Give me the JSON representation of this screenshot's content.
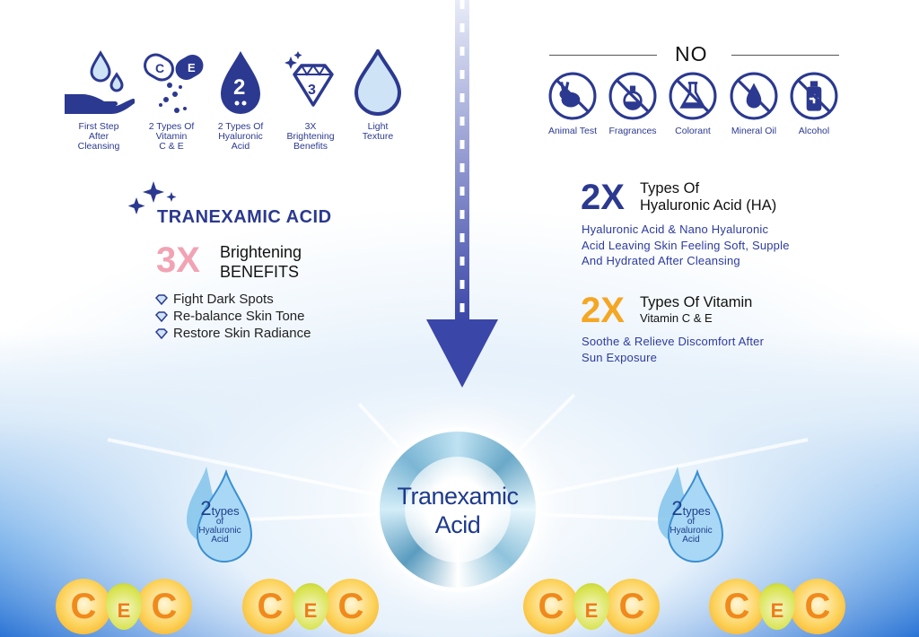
{
  "features": [
    {
      "icon": "hand-water-drops-icon",
      "label": "First Step\nAfter\nCleansing"
    },
    {
      "icon": "vitamin-capsule-icon",
      "label": "2 Types Of\nVitamin\nC & E",
      "capsule_letters": [
        "C",
        "E"
      ]
    },
    {
      "icon": "hyaluronic-drop-icon",
      "label": "2 Types Of\nHyaluronic\nAcid",
      "badge": "2"
    },
    {
      "icon": "diamond-icon",
      "label": "3X\nBrightening\nBenefits",
      "badge": "3"
    },
    {
      "icon": "light-drop-icon",
      "label": "Light\nTexture"
    }
  ],
  "no_section": {
    "title": "NO",
    "items": [
      {
        "icon": "no-animal-test-icon",
        "label": "Animal Test"
      },
      {
        "icon": "no-fragrance-icon",
        "label": "Fragrances"
      },
      {
        "icon": "no-colorant-icon",
        "label": "Colorant"
      },
      {
        "icon": "no-mineral-oil-icon",
        "label": "Mineral Oil"
      },
      {
        "icon": "no-alcohol-icon",
        "label": "Alcohol"
      }
    ]
  },
  "tranexamic": {
    "title": "TRANEXAMIC ACID",
    "multiplier": "3X",
    "heading_line1": "Brightening",
    "heading_line2": "BENEFITS",
    "bullets": [
      "Fight Dark Spots",
      "Re-balance Skin Tone",
      "Restore Skin Radiance"
    ]
  },
  "hyaluronic": {
    "multiplier": "2X",
    "heading_line1": "Types Of",
    "heading_line2": "Hyaluronic Acid (HA)",
    "description": [
      "Hyaluronic Acid & Nano Hyaluronic",
      "Acid Leaving Skin Feeling Soft, Supple",
      "And Hydrated After Cleansing"
    ]
  },
  "vitamin": {
    "multiplier": "2X",
    "heading_line1": "Types Of Vitamin",
    "heading_line2": "Vitamin C & E",
    "description": [
      "Soothe & Relieve Discomfort After",
      "Sun Exposure"
    ]
  },
  "center_badge": {
    "line1": "Tranexamic",
    "line2": "Acid"
  },
  "drop_badge": {
    "number": "2",
    "word": "types",
    "of": "of",
    "line1": "Hyaluronic",
    "line2": "Acid"
  },
  "vitamin_balls": {
    "c": "C",
    "e": "E"
  },
  "colors": {
    "navy": "#2b3990",
    "pink": "#f2a3b3",
    "orange": "#f5a623",
    "blue": "#1565d0"
  }
}
